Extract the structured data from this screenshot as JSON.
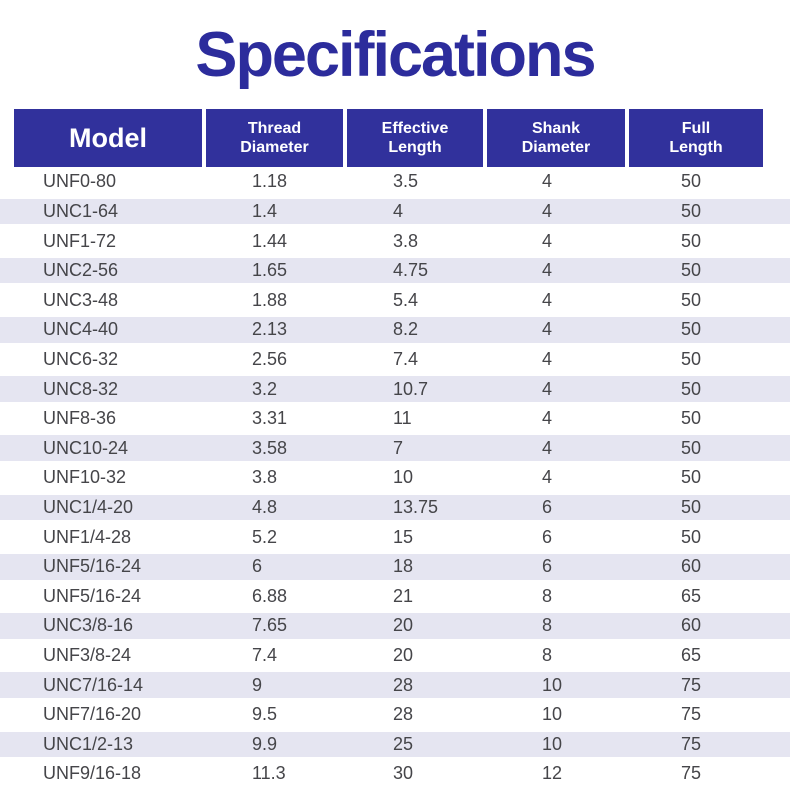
{
  "page": {
    "title": "Specifications"
  },
  "colors": {
    "title_text": "#2C2C9C",
    "header_bg": "#31319C",
    "header_text": "#FFFFFF",
    "stripe": "#E5E5F1",
    "body_text": "#454549",
    "background": "#FFFFFF"
  },
  "table": {
    "header": [
      {
        "lines": [
          "Model"
        ]
      },
      {
        "lines": [
          "Thread",
          "Diameter"
        ]
      },
      {
        "lines": [
          "Effective",
          "Length"
        ]
      },
      {
        "lines": [
          "Shank",
          "Diameter"
        ]
      },
      {
        "lines": [
          "Full",
          "Length"
        ]
      }
    ]
  },
  "chart_data": {
    "type": "table",
    "title": "Specifications",
    "columns": [
      "Model",
      "Thread Diameter",
      "Effective Length",
      "Shank Diameter",
      "Full Length"
    ],
    "rows": [
      [
        "UNF0-80",
        "1.18",
        "3.5",
        "4",
        "50"
      ],
      [
        "UNC1-64",
        "1.4",
        "4",
        "4",
        "50"
      ],
      [
        "UNF1-72",
        "1.44",
        "3.8",
        "4",
        "50"
      ],
      [
        "UNC2-56",
        "1.65",
        "4.75",
        "4",
        "50"
      ],
      [
        "UNC3-48",
        "1.88",
        "5.4",
        "4",
        "50"
      ],
      [
        "UNC4-40",
        "2.13",
        "8.2",
        "4",
        "50"
      ],
      [
        "UNC6-32",
        "2.56",
        "7.4",
        "4",
        "50"
      ],
      [
        "UNC8-32",
        "3.2",
        "10.7",
        "4",
        "50"
      ],
      [
        "UNF8-36",
        "3.31",
        "11",
        "4",
        "50"
      ],
      [
        "UNC10-24",
        "3.58",
        "7",
        "4",
        "50"
      ],
      [
        "UNF10-32",
        "3.8",
        "10",
        "4",
        "50"
      ],
      [
        "UNC1/4-20",
        "4.8",
        "13.75",
        "6",
        "50"
      ],
      [
        "UNF1/4-28",
        "5.2",
        "15",
        "6",
        "50"
      ],
      [
        "UNF5/16-24",
        "6",
        "18",
        "6",
        "60"
      ],
      [
        "UNF5/16-24",
        "6.88",
        "21",
        "8",
        "65"
      ],
      [
        "UNC3/8-16",
        "7.65",
        "20",
        "8",
        "60"
      ],
      [
        "UNF3/8-24",
        "7.4",
        "20",
        "8",
        "65"
      ],
      [
        "UNC7/16-14",
        "9",
        "28",
        "10",
        "75"
      ],
      [
        "UNF7/16-20",
        "9.5",
        "28",
        "10",
        "75"
      ],
      [
        "UNC1/2-13",
        "9.9",
        "25",
        "10",
        "75"
      ],
      [
        "UNF9/16-18",
        "11.3",
        "30",
        "12",
        "75"
      ]
    ]
  }
}
